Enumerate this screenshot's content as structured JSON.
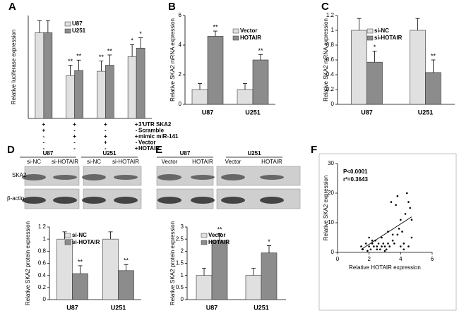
{
  "chart_data": [
    {
      "type": "bar",
      "panel": "A",
      "y_label": "Relative luciferase expression",
      "categories": [
        null,
        null,
        null,
        null
      ],
      "ylim": [
        0,
        120
      ],
      "series": [
        {
          "name": "U87",
          "color": "#e0e0e0",
          "values": [
            100,
            50,
            55,
            72
          ],
          "errors": [
            14,
            12,
            12,
            14
          ],
          "significance": [
            null,
            "**",
            "**",
            "*"
          ]
        },
        {
          "name": "U251",
          "color": "#8c8c8c",
          "values": [
            100,
            56,
            62,
            82
          ],
          "errors": [
            14,
            12,
            12,
            12
          ],
          "significance": [
            null,
            "**",
            "**",
            "*"
          ]
        }
      ],
      "conditions": {
        "rows": [
          "3'UTR SKA2",
          "Scramble",
          "mimic miR-141",
          "Vector",
          "HOTAIR"
        ],
        "signs": [
          [
            "+",
            "+",
            "+",
            "+"
          ],
          [
            "+",
            "-",
            "-",
            "-"
          ],
          [
            "-",
            "+",
            "+",
            "+"
          ],
          [
            "-",
            "-",
            "+",
            "-"
          ],
          [
            "-",
            "-",
            "-",
            "+"
          ]
        ]
      }
    },
    {
      "type": "bar",
      "panel": "B",
      "y_label": "Relative SKA2 mRNA expression",
      "categories": [
        "U87",
        "U251"
      ],
      "ylim": [
        0,
        6
      ],
      "yticks": [
        0,
        2,
        4,
        6
      ],
      "series": [
        {
          "name": "Vector",
          "color": "#e0e0e0",
          "values": [
            1,
            1
          ],
          "errors": [
            0.4,
            0.4
          ],
          "significance": [
            null,
            null
          ]
        },
        {
          "name": "HOTAIR",
          "color": "#8c8c8c",
          "values": [
            4.6,
            3.0
          ],
          "errors": [
            0.35,
            0.35
          ],
          "significance": [
            "**",
            "**"
          ]
        }
      ]
    },
    {
      "type": "bar",
      "panel": "C",
      "y_label": "Relative SKA2 mRNA expression",
      "categories": [
        "U87",
        "U251"
      ],
      "ylim": [
        0,
        1.2
      ],
      "yticks": [
        0,
        0.2,
        0.4,
        0.6,
        0.8,
        1,
        1.2
      ],
      "series": [
        {
          "name": "si-NC",
          "color": "#e0e0e0",
          "values": [
            1,
            1
          ],
          "errors": [
            0.16,
            0.16
          ],
          "significance": [
            null,
            null
          ]
        },
        {
          "name": "si-HOTAIR",
          "color": "#8c8c8c",
          "values": [
            0.57,
            0.43
          ],
          "errors": [
            0.15,
            0.17
          ],
          "significance": [
            "*",
            "**"
          ]
        }
      ]
    },
    {
      "type": "bar",
      "panel": "D",
      "y_label": "Relative SKA2 protein expression",
      "categories": [
        "U87",
        "U251"
      ],
      "ylim": [
        0,
        1.2
      ],
      "yticks": [
        0,
        0.2,
        0.4,
        0.6,
        0.8,
        1,
        1.2
      ],
      "series": [
        {
          "name": "si-NC",
          "color": "#e0e0e0",
          "values": [
            1,
            1
          ],
          "errors": [
            0.12,
            0.12
          ],
          "significance": [
            null,
            null
          ]
        },
        {
          "name": "si-HOTAIR",
          "color": "#8c8c8c",
          "values": [
            0.43,
            0.48
          ],
          "errors": [
            0.13,
            0.1
          ],
          "significance": [
            "**",
            "**"
          ]
        }
      ]
    },
    {
      "type": "bar",
      "panel": "E",
      "y_label": "Relative SKA2 protein expression",
      "categories": [
        "U87",
        "U251"
      ],
      "ylim": [
        0,
        3
      ],
      "yticks": [
        0,
        0.5,
        1,
        1.5,
        2,
        2.5,
        3
      ],
      "series": [
        {
          "name": "Vector",
          "color": "#e0e0e0",
          "values": [
            1,
            1
          ],
          "errors": [
            0.3,
            0.3
          ],
          "significance": [
            null,
            null
          ]
        },
        {
          "name": "HOTAIR",
          "color": "#8c8c8c",
          "values": [
            2.43,
            1.93
          ],
          "errors": [
            0.3,
            0.3
          ],
          "significance": [
            "**",
            "*"
          ]
        }
      ]
    },
    {
      "type": "scatter",
      "panel": "F",
      "x_label": "Relative HOTAIR expression",
      "y_label": "Relative SKA2 expression",
      "xlim": [
        0,
        6
      ],
      "xticks": [
        0,
        2,
        4,
        6
      ],
      "ylim": [
        0,
        30
      ],
      "yticks": [
        0,
        10,
        20,
        30
      ],
      "annotations": [
        "P<0.0001",
        "r²=0.3643"
      ],
      "marker_color": "#000000",
      "x": [
        1.5,
        1.6,
        1.8,
        1.9,
        2.0,
        2.0,
        2.1,
        2.2,
        2.3,
        2.4,
        2.5,
        2.5,
        2.6,
        2.7,
        2.8,
        2.9,
        3.0,
        3.0,
        3.1,
        3.2,
        3.3,
        3.4,
        3.5,
        3.5,
        3.6,
        3.7,
        3.8,
        3.9,
        4.0,
        4.0,
        4.1,
        4.2,
        4.3,
        4.4,
        4.5,
        4.6,
        4.7,
        4.7,
        3.2,
        3.8,
        4.2,
        4.5,
        2.2,
        2.8
      ],
      "y": [
        2,
        1,
        3,
        0.5,
        2,
        5,
        1,
        3,
        2,
        4,
        1,
        2,
        3,
        1,
        5,
        3,
        2,
        0.5,
        1,
        3,
        2,
        17,
        4,
        6,
        3,
        16,
        19,
        8,
        11,
        2,
        7,
        3,
        13,
        20,
        2,
        15,
        5,
        11,
        7,
        6,
        1,
        17,
        4,
        2
      ],
      "fit": {
        "x": [
          1.5,
          4.7
        ],
        "y": [
          1,
          12
        ]
      }
    }
  ],
  "blots": [
    {
      "groups": [
        "U87",
        "U251"
      ],
      "lanes": [
        "si-NC",
        "si-HOTAIR",
        "si-NC",
        "si-HOTAIR"
      ],
      "rows": [
        "SKA2",
        "β-actin"
      ]
    },
    {
      "groups": [
        "U87",
        "U251"
      ],
      "lanes": [
        "Vector",
        "HOTAIR",
        "Vector",
        "HOTAIR"
      ]
    }
  ]
}
